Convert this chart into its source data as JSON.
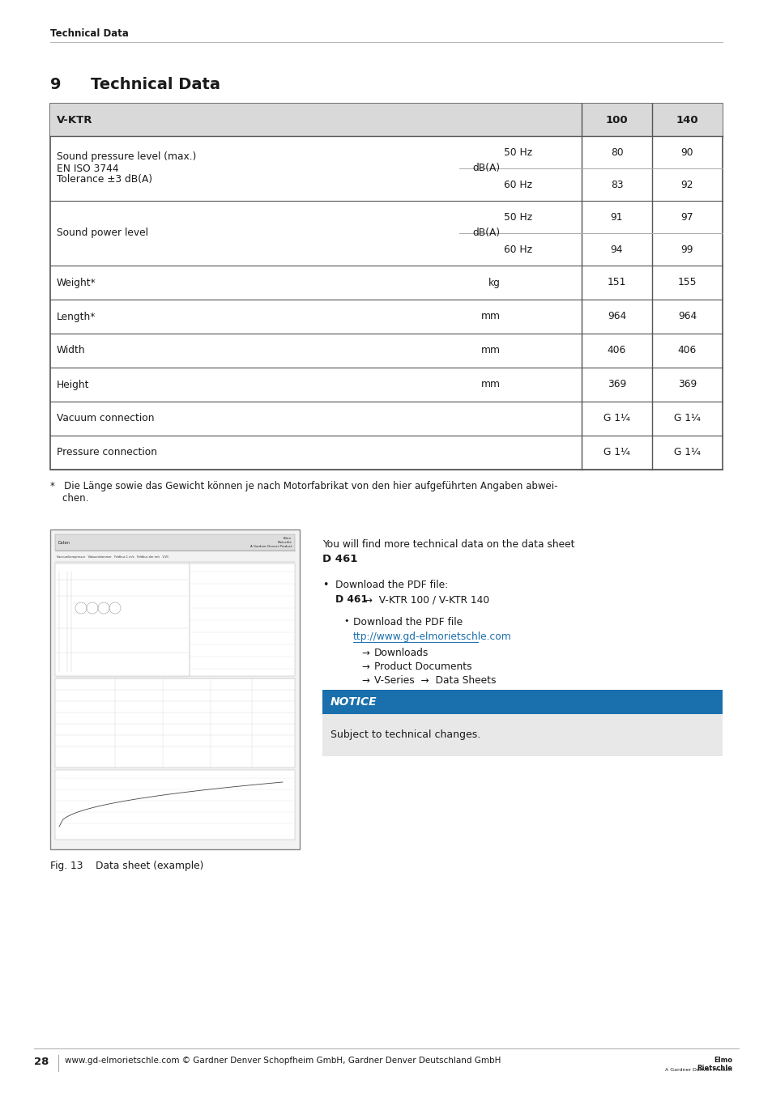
{
  "page_header": "Technical Data",
  "section_number": "9",
  "section_title": "Technical Data",
  "table_rows": [
    {
      "label": "Sound pressure level (max.)\nEN ISO 3744\nTolerance ±3 dB(A)",
      "unit": "dB(A)",
      "sub": [
        "50 Hz",
        "60 Hz"
      ],
      "val100": [
        "80",
        "83"
      ],
      "val140": [
        "90",
        "92"
      ]
    },
    {
      "label": "Sound power level",
      "unit": "dB(A)",
      "sub": [
        "50 Hz",
        "60 Hz"
      ],
      "val100": [
        "91",
        "94"
      ],
      "val140": [
        "97",
        "99"
      ]
    },
    {
      "label": "Weight*",
      "unit": "kg",
      "sub": [
        ""
      ],
      "val100": [
        "151"
      ],
      "val140": [
        "155"
      ]
    },
    {
      "label": "Length*",
      "unit": "mm",
      "sub": [
        ""
      ],
      "val100": [
        "964"
      ],
      "val140": [
        "964"
      ]
    },
    {
      "label": "Width",
      "unit": "mm",
      "sub": [
        ""
      ],
      "val100": [
        "406"
      ],
      "val140": [
        "406"
      ]
    },
    {
      "label": "Height",
      "unit": "mm",
      "sub": [
        ""
      ],
      "val100": [
        "369"
      ],
      "val140": [
        "369"
      ]
    },
    {
      "label": "Vacuum connection",
      "unit": "",
      "sub": [
        ""
      ],
      "val100": [
        "G 1¹⁄₄"
      ],
      "val140": [
        "G 1¹⁄₄"
      ]
    },
    {
      "label": "Pressure connection",
      "unit": "",
      "sub": [
        ""
      ],
      "val100": [
        "G 1¹⁄₄"
      ],
      "val140": [
        "G 1¹⁄₄"
      ]
    }
  ],
  "footnote_line1": "*   Die Länge sowie das Gewicht können je nach Motorfabrikat von den hier aufgeführten Angaben abwei-",
  "footnote_line2": "    chen.",
  "data_sheet_text_line1": "You will find more technical data on the data sheet",
  "data_sheet_text_bold": "D 461",
  "bullet1_label": "Download the PDF file:",
  "bullet1_bold": "D 461",
  "bullet1_arrow_text": "  →  V-KTR 100 / V-KTR 140",
  "bullet2_label": "Download the PDF file",
  "bullet2_link": "ttp://www.gd-elmorietschle.com",
  "arrow1": "Downloads",
  "arrow2": "Product Documents",
  "arrow3": "V-Series  →  Data Sheets",
  "notice_title": "NOTICE",
  "notice_body": "Subject to technical changes.",
  "fig_caption": "Fig. 13    Data sheet (example)",
  "footer_page": "28",
  "footer_text": "www.gd-elmorietschle.com © Gardner Denver Schopfheim GmbH, Gardner Denver Deutschland GmbH",
  "header_bg": "#d9d9d9",
  "notice_bg": "#1a6fad",
  "notice_body_bg": "#e8e8e8",
  "table_border": "#555555",
  "inner_line": "#aaaaaa",
  "text_color": "#1a1a1a",
  "link_color": "#1a6fad"
}
